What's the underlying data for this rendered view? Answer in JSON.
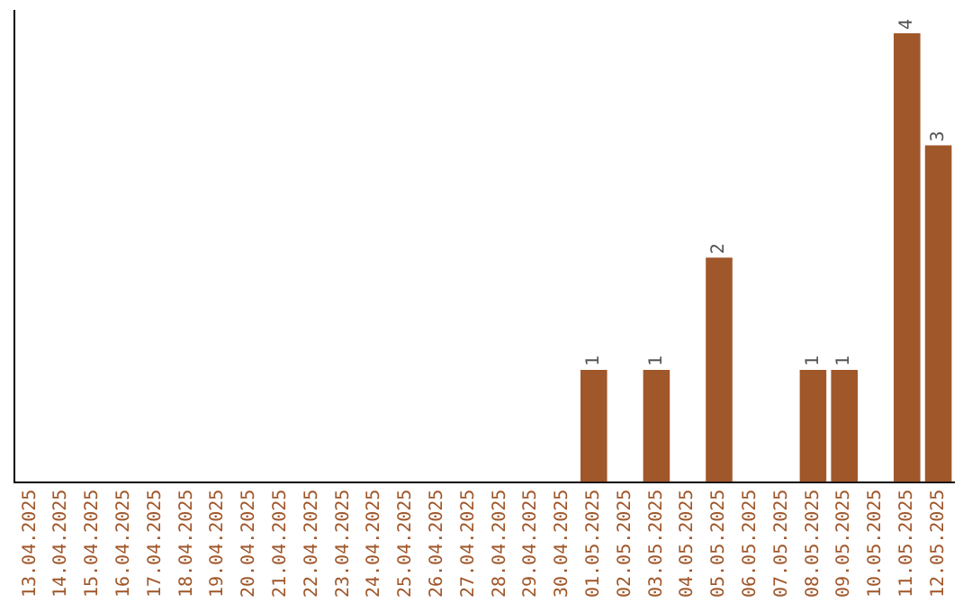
{
  "chart_data": {
    "type": "bar",
    "categories": [
      "13.04.2025",
      "14.04.2025",
      "15.04.2025",
      "16.04.2025",
      "17.04.2025",
      "18.04.2025",
      "19.04.2025",
      "20.04.2025",
      "21.04.2025",
      "22.04.2025",
      "23.04.2025",
      "24.04.2025",
      "25.04.2025",
      "26.04.2025",
      "27.04.2025",
      "28.04.2025",
      "29.04.2025",
      "30.04.2025",
      "01.05.2025",
      "02.05.2025",
      "03.05.2025",
      "04.05.2025",
      "05.05.2025",
      "06.05.2025",
      "07.05.2025",
      "08.05.2025",
      "09.05.2025",
      "10.05.2025",
      "11.05.2025",
      "12.05.2025"
    ],
    "values": [
      null,
      null,
      null,
      null,
      null,
      null,
      null,
      null,
      null,
      null,
      null,
      null,
      null,
      null,
      null,
      null,
      null,
      null,
      1,
      null,
      1,
      null,
      2,
      null,
      null,
      1,
      1,
      null,
      4,
      3
    ],
    "data_labels": true,
    "ylim": [
      0,
      4.2
    ],
    "tick_labels": "x",
    "color": "#a0572a",
    "grid": false,
    "legend": false
  }
}
